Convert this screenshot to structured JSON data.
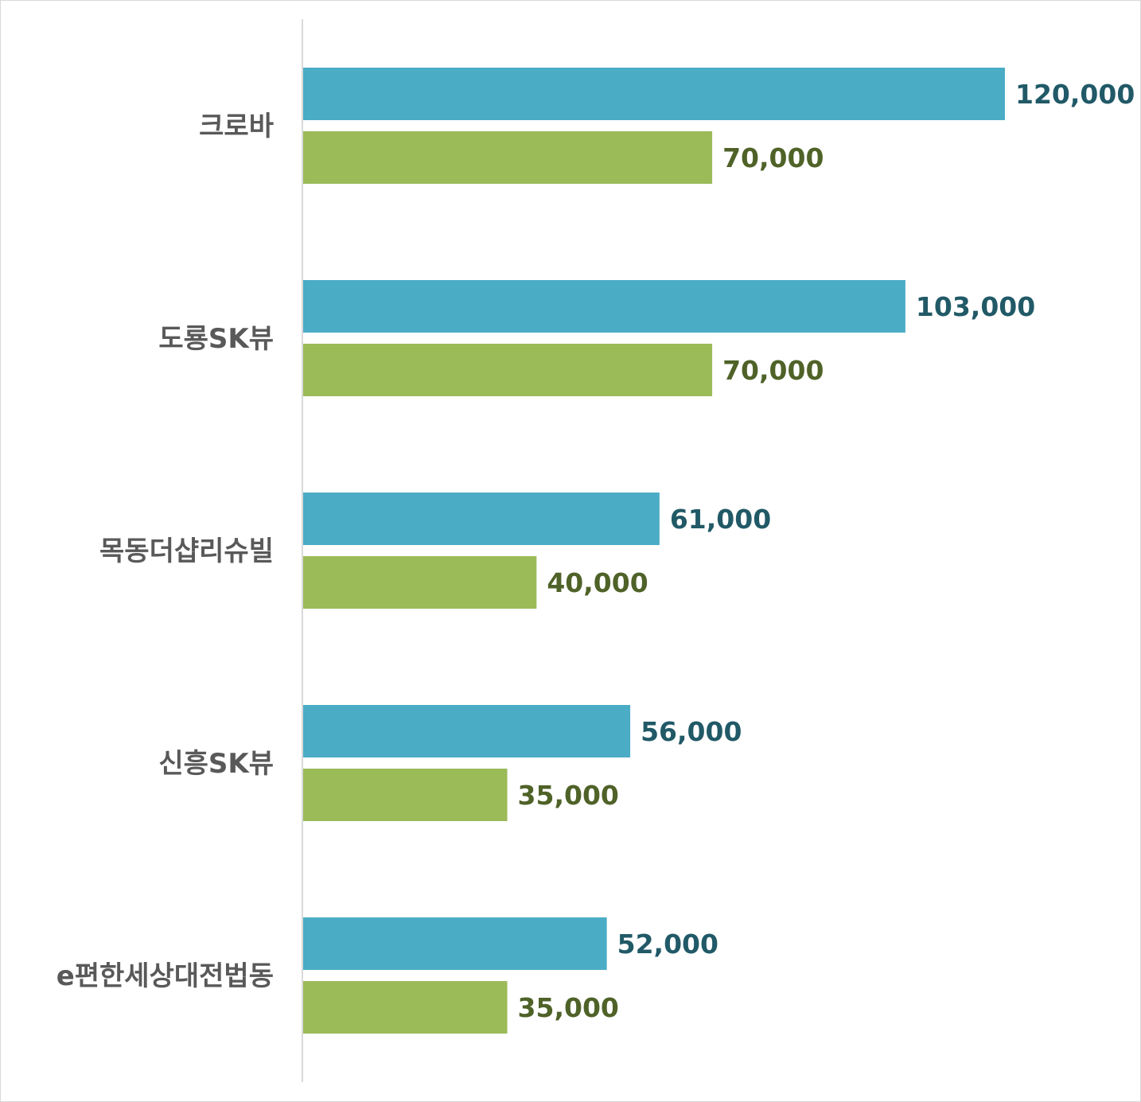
{
  "chart_data": {
    "type": "bar",
    "orientation": "horizontal",
    "categories": [
      "크로바",
      "도룡SK뷰",
      "목동더샵리슈빌",
      "신흥SK뷰",
      "e편한세상대전법동"
    ],
    "series": [
      {
        "values": [
          120000,
          103000,
          61000,
          56000,
          52000
        ],
        "labels": [
          "120,000",
          "103,000",
          "61,000",
          "56,000",
          "52,000"
        ],
        "color": "#4bacc6",
        "label_color": "#215967"
      },
      {
        "values": [
          70000,
          70000,
          40000,
          35000,
          35000
        ],
        "labels": [
          "70,000",
          "70,000",
          "40,000",
          "35,000",
          "35,000"
        ],
        "color": "#9bbb59",
        "label_color": "#4f6228"
      }
    ],
    "xlim": [
      0,
      120000
    ],
    "grid": false,
    "legend": "none",
    "axis_color": "#d9d9d9"
  }
}
